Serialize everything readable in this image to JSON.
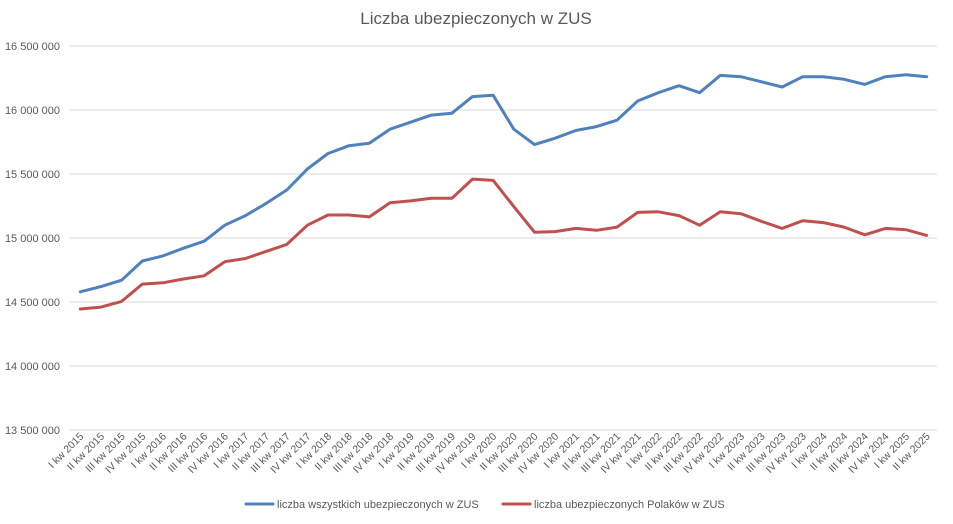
{
  "chart_data": {
    "type": "line",
    "title": "Liczba ubezpieczonych w ZUS",
    "xlabel": "",
    "ylabel": "",
    "ylim": [
      13500000,
      16500000
    ],
    "yticks": [
      13500000,
      14000000,
      14500000,
      15000000,
      15500000,
      16000000,
      16500000
    ],
    "ytick_labels": [
      "13 500 000",
      "14 000 000",
      "14 500 000",
      "15 000 000",
      "15 500 000",
      "16 000 000",
      "16 500 000"
    ],
    "grid": "horizontal",
    "legend_position": "bottom",
    "categories": [
      "I kw 2015",
      "II kw 2015",
      "III kw 2015",
      "IV kw 2015",
      "I kw 2016",
      "II kw 2016",
      "III kw 2016",
      "IV kw 2016",
      "I kw 2017",
      "II kw 2017",
      "III kw 2017",
      "IV kw 2017",
      "I kw 2018",
      "II kw 2018",
      "III kw 2018",
      "IV kw 2018",
      "I kw 2019",
      "II kw 2019",
      "III kw 2019",
      "IV kw 2019",
      "I kw 2020",
      "II kw 2020",
      "III kw 2020",
      "IV kw 2020",
      "I kw 2021",
      "II kw 2021",
      "III kw 2021",
      "IV kw 2021",
      "I kw 2022",
      "II kw 2022",
      "III kw 2022",
      "IV kw 2022",
      "I kw 2023",
      "II kw 2023",
      "III kw 2023",
      "IV kw 2023",
      "I kw 2024",
      "II kw 2024",
      "III kw 2024",
      "IV kw 2024",
      "I kw 2025",
      "II kw 2025"
    ],
    "series": [
      {
        "name": "liczba wszystkich ubezpieczonych w ZUS",
        "color": "#4f81bd",
        "values": [
          14580000,
          14620000,
          14670000,
          14820000,
          14860000,
          14920000,
          14975000,
          15100000,
          15175000,
          15270000,
          15375000,
          15540000,
          15660000,
          15720000,
          15740000,
          15850000,
          15905000,
          15960000,
          15975000,
          16105000,
          16115000,
          15850000,
          15730000,
          15780000,
          15840000,
          15870000,
          15920000,
          16070000,
          16135000,
          16190000,
          16135000,
          16270000,
          16260000,
          16220000,
          16180000,
          16260000,
          16260000,
          16240000,
          16200000,
          16260000,
          16275000,
          16260000
        ]
      },
      {
        "name": "liczba ubezpieczonych Polaków w ZUS",
        "color": "#c0504d",
        "values": [
          14445000,
          14460000,
          14505000,
          14640000,
          14650000,
          14680000,
          14705000,
          14815000,
          14840000,
          14895000,
          14950000,
          15100000,
          15180000,
          15180000,
          15165000,
          15275000,
          15290000,
          15310000,
          15310000,
          15460000,
          15450000,
          15245000,
          15045000,
          15050000,
          15075000,
          15060000,
          15085000,
          15200000,
          15205000,
          15175000,
          15100000,
          15205000,
          15190000,
          15130000,
          15075000,
          15135000,
          15120000,
          15085000,
          15025000,
          15075000,
          15065000,
          15020000
        ]
      }
    ]
  }
}
